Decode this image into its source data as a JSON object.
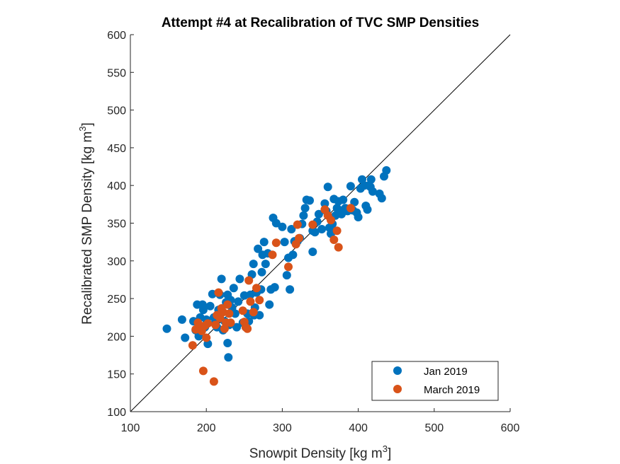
{
  "chart_data": {
    "type": "scatter",
    "title": "Attempt #4 at Recalibration of TVC SMP Densities",
    "xlabel": "Snowpit Density [kg m",
    "xlabel_sup": "3",
    "xlabel_end": "]",
    "ylabel": "Recalibrated SMP Density [kg m",
    "ylabel_sup": "3",
    "ylabel_end": "]",
    "xlim": [
      100,
      600
    ],
    "ylim": [
      100,
      600
    ],
    "xticks": [
      100,
      200,
      300,
      400,
      500,
      600
    ],
    "yticks": [
      100,
      150,
      200,
      250,
      300,
      350,
      400,
      450,
      500,
      550,
      600
    ],
    "grid": false,
    "legend_position": "bottom-right",
    "reference_line": {
      "x": [
        100,
        600
      ],
      "y": [
        100,
        600
      ],
      "color": "#000000"
    },
    "series": [
      {
        "name": "Jan 2019",
        "color": "#0072BD",
        "points": [
          [
            148,
            210
          ],
          [
            168,
            222
          ],
          [
            172,
            198
          ],
          [
            183,
            220
          ],
          [
            186,
            208
          ],
          [
            188,
            242
          ],
          [
            190,
            200
          ],
          [
            192,
            225
          ],
          [
            195,
            242
          ],
          [
            196,
            235
          ],
          [
            198,
            212
          ],
          [
            200,
            222
          ],
          [
            202,
            190
          ],
          [
            205,
            240
          ],
          [
            208,
            256
          ],
          [
            210,
            225
          ],
          [
            212,
            218
          ],
          [
            214,
            212
          ],
          [
            216,
            235
          ],
          [
            218,
            255
          ],
          [
            220,
            276
          ],
          [
            222,
            208
          ],
          [
            224,
            220
          ],
          [
            226,
            245
          ],
          [
            228,
            255
          ],
          [
            228,
            191
          ],
          [
            229,
            172
          ],
          [
            230,
            215
          ],
          [
            232,
            248
          ],
          [
            234,
            238
          ],
          [
            236,
            264
          ],
          [
            238,
            230
          ],
          [
            240,
            212
          ],
          [
            242,
            246
          ],
          [
            244,
            276
          ],
          [
            248,
            218
          ],
          [
            250,
            254
          ],
          [
            252,
            212
          ],
          [
            254,
            230
          ],
          [
            256,
            220
          ],
          [
            258,
            255
          ],
          [
            260,
            282
          ],
          [
            262,
            296
          ],
          [
            263,
            228
          ],
          [
            264,
            238
          ],
          [
            266,
            258
          ],
          [
            268,
            316
          ],
          [
            270,
            228
          ],
          [
            272,
            262
          ],
          [
            273,
            285
          ],
          [
            274,
            308
          ],
          [
            276,
            325
          ],
          [
            278,
            296
          ],
          [
            281,
            310
          ],
          [
            283,
            242
          ],
          [
            285,
            262
          ],
          [
            288,
            357
          ],
          [
            290,
            265
          ],
          [
            292,
            350
          ],
          [
            300,
            345
          ],
          [
            303,
            325
          ],
          [
            306,
            281
          ],
          [
            308,
            304
          ],
          [
            310,
            262
          ],
          [
            312,
            342
          ],
          [
            314,
            308
          ],
          [
            316,
            326
          ],
          [
            320,
            326
          ],
          [
            323,
            330
          ],
          [
            326,
            349
          ],
          [
            328,
            360
          ],
          [
            330,
            370
          ],
          [
            332,
            381
          ],
          [
            336,
            380
          ],
          [
            340,
            312
          ],
          [
            340,
            340
          ],
          [
            343,
            338
          ],
          [
            346,
            352
          ],
          [
            348,
            362
          ],
          [
            352,
            342
          ],
          [
            356,
            376
          ],
          [
            358,
            366
          ],
          [
            360,
            398
          ],
          [
            362,
            344
          ],
          [
            364,
            336
          ],
          [
            366,
            349
          ],
          [
            368,
            382
          ],
          [
            370,
            360
          ],
          [
            372,
            370
          ],
          [
            374,
            379
          ],
          [
            376,
            367
          ],
          [
            378,
            362
          ],
          [
            380,
            381
          ],
          [
            383,
            370
          ],
          [
            386,
            366
          ],
          [
            390,
            399
          ],
          [
            393,
            367
          ],
          [
            395,
            378
          ],
          [
            398,
            364
          ],
          [
            400,
            358
          ],
          [
            403,
            396
          ],
          [
            405,
            408
          ],
          [
            408,
            400
          ],
          [
            410,
            373
          ],
          [
            412,
            368
          ],
          [
            414,
            400
          ],
          [
            416,
            398
          ],
          [
            417,
            408
          ],
          [
            419,
            392
          ],
          [
            428,
            389
          ],
          [
            431,
            383
          ],
          [
            434,
            412
          ],
          [
            437,
            420
          ]
        ]
      },
      {
        "name": "March 2019",
        "color": "#D95319",
        "points": [
          [
            182,
            188
          ],
          [
            186,
            209
          ],
          [
            189,
            218
          ],
          [
            192,
            214
          ],
          [
            194,
            207
          ],
          [
            196,
            154
          ],
          [
            198,
            214
          ],
          [
            200,
            198
          ],
          [
            202,
            217
          ],
          [
            210,
            140
          ],
          [
            212,
            215
          ],
          [
            214,
            228
          ],
          [
            216,
            258
          ],
          [
            218,
            224
          ],
          [
            220,
            237
          ],
          [
            222,
            232
          ],
          [
            224,
            210
          ],
          [
            226,
            218
          ],
          [
            228,
            242
          ],
          [
            230,
            230
          ],
          [
            232,
            218
          ],
          [
            248,
            234
          ],
          [
            250,
            219
          ],
          [
            252,
            212
          ],
          [
            254,
            210
          ],
          [
            256,
            274
          ],
          [
            258,
            246
          ],
          [
            262,
            232
          ],
          [
            266,
            264
          ],
          [
            270,
            248
          ],
          [
            287,
            308
          ],
          [
            292,
            324
          ],
          [
            308,
            292
          ],
          [
            318,
            322
          ],
          [
            320,
            348
          ],
          [
            322,
            330
          ],
          [
            340,
            348
          ],
          [
            356,
            368
          ],
          [
            360,
            360
          ],
          [
            364,
            354
          ],
          [
            368,
            328
          ],
          [
            372,
            340
          ],
          [
            374,
            318
          ],
          [
            390,
            370
          ]
        ]
      }
    ]
  }
}
